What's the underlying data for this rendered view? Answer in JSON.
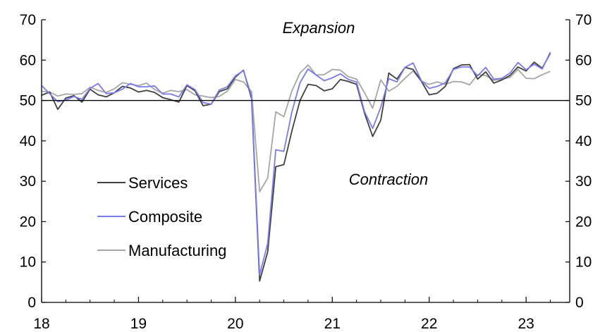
{
  "chart_data": {
    "type": "line",
    "title": "",
    "xlabel": "",
    "ylabel": "",
    "ylim": [
      0,
      70
    ],
    "xlim": [
      2018.0,
      2023.45
    ],
    "y_ticks": [
      "0",
      "10",
      "20",
      "30",
      "40",
      "50",
      "60",
      "70"
    ],
    "x_ticks": [
      {
        "label": "18",
        "value": 2018
      },
      {
        "label": "19",
        "value": 2019
      },
      {
        "label": "20",
        "value": 2020
      },
      {
        "label": "21",
        "value": 2021
      },
      {
        "label": "22",
        "value": 2022
      },
      {
        "label": "23",
        "value": 2023
      }
    ],
    "reference_line": 50,
    "grid": false,
    "legend_position": "center-left",
    "annotations": {
      "top": "Expansion",
      "bottom": "Contraction"
    },
    "x_start": "2018-01",
    "frequency": "monthly",
    "series": [
      {
        "name": "Services",
        "color": "#404040",
        "values": [
          51.3,
          52.1,
          47.8,
          50.6,
          51.2,
          49.6,
          52.8,
          51.4,
          50.9,
          51.9,
          53.5,
          53.1,
          52.1,
          52.5,
          52.0,
          50.7,
          50.2,
          49.6,
          53.7,
          52.4,
          48.7,
          49.1,
          52.2,
          52.9,
          55.8,
          57.5,
          50.5,
          5.3,
          12.5,
          33.6,
          34.1,
          42.5,
          50.0,
          54.0,
          53.7,
          52.4,
          52.9,
          55.2,
          54.7,
          54.0,
          46.8,
          41.1,
          45.1,
          56.8,
          55.3,
          58.2,
          57.7,
          54.9,
          51.4,
          51.8,
          53.5,
          57.9,
          58.8,
          58.9,
          55.3,
          57.1,
          54.3,
          55.1,
          56.2,
          58.3,
          57.3,
          59.5,
          58.0,
          61.7
        ]
      },
      {
        "name": "Composite",
        "color": "#7b7bf0",
        "values": [
          53.7,
          51.7,
          49.7,
          50.1,
          51.0,
          50.3,
          53.0,
          54.2,
          51.7,
          51.9,
          52.8,
          54.2,
          53.4,
          53.4,
          53.6,
          51.6,
          51.6,
          50.9,
          53.9,
          52.7,
          49.5,
          49.1,
          52.6,
          53.4,
          56.1,
          57.4,
          51.1,
          6.8,
          14.6,
          37.8,
          37.4,
          47.2,
          54.4,
          57.8,
          56.3,
          54.9,
          55.6,
          56.6,
          55.2,
          54.6,
          47.2,
          43.1,
          48.3,
          55.4,
          54.6,
          58.2,
          59.3,
          55.0,
          53.0,
          53.5,
          54.4,
          57.7,
          58.3,
          58.3,
          56.1,
          58.2,
          55.3,
          55.5,
          56.8,
          59.4,
          57.6,
          59.0,
          57.8,
          62.0
        ]
      },
      {
        "name": "Manufacturing",
        "color": "#a6a6a6",
        "values": [
          52.3,
          52.1,
          51.1,
          51.6,
          51.5,
          51.7,
          53.3,
          52.5,
          52.0,
          52.9,
          54.4,
          54.0,
          53.7,
          54.3,
          52.7,
          51.8,
          52.5,
          52.2,
          52.7,
          51.4,
          51.1,
          50.7,
          51.0,
          52.3,
          55.2,
          54.6,
          52.2,
          27.4,
          30.8,
          47.2,
          46.0,
          52.4,
          56.8,
          58.8,
          56.3,
          56.4,
          57.7,
          57.5,
          55.9,
          55.3,
          51.9,
          48.1,
          55.1,
          52.3,
          53.5,
          55.5,
          57.3,
          54.8,
          54.0,
          54.6,
          54.0,
          54.7,
          54.6,
          53.9,
          56.4,
          56.2,
          55.0,
          55.3,
          55.7,
          57.7,
          55.5,
          55.4,
          56.4,
          57.2
        ]
      }
    ]
  }
}
